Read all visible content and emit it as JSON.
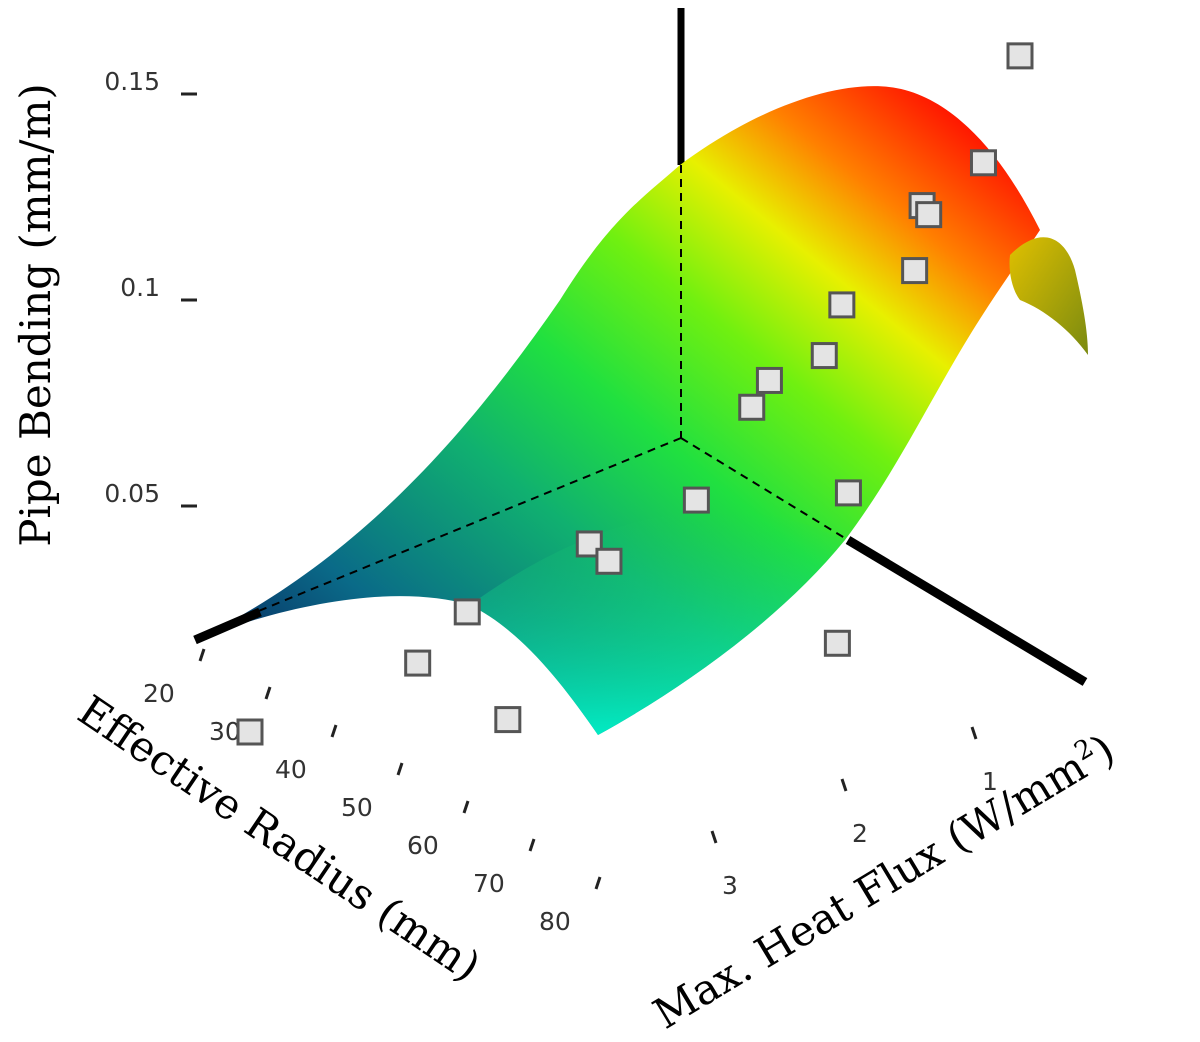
{
  "chart_data": {
    "type": "surface3d",
    "z_axis": {
      "label_text": "Pipe Bending (mm/m)",
      "ticks": [
        {
          "value": 0.05,
          "label": "0.05"
        },
        {
          "value": 0.1,
          "label": "0.1"
        },
        {
          "value": 0.15,
          "label": "0.15"
        }
      ]
    },
    "x_axis": {
      "label_text": "Effective Radius (mm)",
      "ticks": [
        {
          "value": 20,
          "label": "20"
        },
        {
          "value": 30,
          "label": "30"
        },
        {
          "value": 40,
          "label": "40"
        },
        {
          "value": 50,
          "label": "50"
        },
        {
          "value": 60,
          "label": "60"
        },
        {
          "value": 70,
          "label": "70"
        },
        {
          "value": 80,
          "label": "80"
        }
      ]
    },
    "y_axis": {
      "label_main": "Max. Heat Flux (W/mm",
      "label_sup": "2",
      "label_close": ")",
      "ticks": [
        {
          "value": 1,
          "label": "1"
        },
        {
          "value": 2,
          "label": "2"
        },
        {
          "value": 3,
          "label": "3"
        }
      ]
    },
    "colormap": [
      "#08205a",
      "#0a8090",
      "#10e070",
      "#40f020",
      "#e8f000",
      "#ff2000"
    ],
    "data_points": [
      {
        "radius": 20,
        "flux": 3.3,
        "bending": 0.03
      },
      {
        "radius": 30,
        "flux": 2.7,
        "bending": 0.028
      },
      {
        "radius": 30,
        "flux": 2.3,
        "bending": 0.033
      },
      {
        "radius": 40,
        "flux": 2.0,
        "bending": 0.04
      },
      {
        "radius": 50,
        "flux": 1.3,
        "bending": 0.058
      },
      {
        "radius": 50,
        "flux": 3.5,
        "bending": 0.02
      },
      {
        "radius": 55,
        "flux": 3.0,
        "bending": 0.055
      },
      {
        "radius": 60,
        "flux": 2.6,
        "bending": 0.06
      },
      {
        "radius": 60,
        "flux": 1.9,
        "bending": 0.079
      },
      {
        "radius": 65,
        "flux": 1.6,
        "bending": 0.092
      },
      {
        "radius": 70,
        "flux": 1.2,
        "bending": 0.11
      },
      {
        "radius": 70,
        "flux": 2.2,
        "bending": 0.09
      },
      {
        "radius": 75,
        "flux": 1.7,
        "bending": 0.1
      },
      {
        "radius": 75,
        "flux": 2.4,
        "bending": 0.046
      },
      {
        "radius": 80,
        "flux": 1.0,
        "bending": 0.148
      },
      {
        "radius": 80,
        "flux": 2.0,
        "bending": 0.125
      },
      {
        "radius": 80,
        "flux": 1.4,
        "bending": 0.124
      },
      {
        "radius": 80,
        "flux": 3.0,
        "bending": 0.01
      }
    ]
  }
}
